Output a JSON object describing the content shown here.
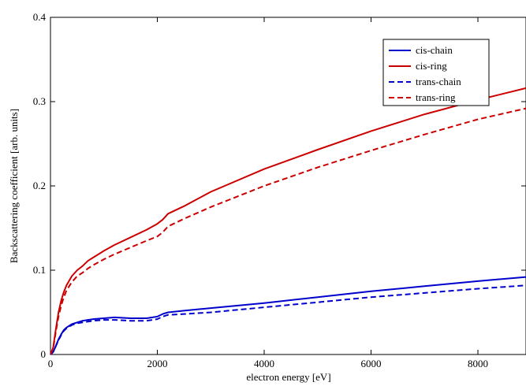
{
  "chart_data": {
    "type": "line",
    "xlabel": "electron energy [eV]",
    "ylabel": "Backscattering coefficient [arb. units]",
    "xlim": [
      0,
      8900
    ],
    "ylim": [
      0,
      0.4
    ],
    "x_ticks": [
      0,
      2000,
      4000,
      6000,
      8000
    ],
    "y_ticks": [
      0,
      0.1,
      0.2,
      0.3,
      0.4
    ],
    "x_tick_labels": [
      "0",
      "2000",
      "4000",
      "6000",
      "8000"
    ],
    "y_tick_labels": [
      "0",
      "0.1",
      "0.2",
      "0.3",
      "0.4"
    ],
    "grid": false,
    "legend_position": "top-right",
    "series": [
      {
        "name": "cis-chain",
        "color": "#0000cc",
        "dash": "solid",
        "x": [
          0,
          50,
          100,
          150,
          200,
          250,
          300,
          400,
          500,
          600,
          700,
          800,
          1000,
          1200,
          1500,
          1800,
          2000,
          2100,
          2200,
          2500,
          3000,
          4000,
          5000,
          6000,
          7000,
          8000,
          8900
        ],
        "y": [
          0,
          0.003,
          0.01,
          0.018,
          0.024,
          0.029,
          0.032,
          0.036,
          0.038,
          0.04,
          0.041,
          0.042,
          0.043,
          0.044,
          0.043,
          0.043,
          0.045,
          0.048,
          0.05,
          0.052,
          0.055,
          0.061,
          0.068,
          0.075,
          0.081,
          0.087,
          0.092
        ]
      },
      {
        "name": "cis-ring",
        "color": "#cc0000",
        "dash": "solid",
        "x": [
          0,
          50,
          100,
          150,
          200,
          250,
          300,
          400,
          500,
          600,
          700,
          800,
          1000,
          1200,
          1500,
          1800,
          2000,
          2100,
          2200,
          2500,
          3000,
          4000,
          5000,
          6000,
          7000,
          8000,
          8900
        ],
        "y": [
          0,
          0.008,
          0.03,
          0.05,
          0.064,
          0.074,
          0.082,
          0.093,
          0.1,
          0.105,
          0.111,
          0.115,
          0.123,
          0.13,
          0.139,
          0.148,
          0.155,
          0.16,
          0.167,
          0.176,
          0.193,
          0.22,
          0.243,
          0.265,
          0.285,
          0.302,
          0.316
        ]
      },
      {
        "name": "trans-chain",
        "color": "#0000cc",
        "dash": "dashed",
        "x": [
          0,
          50,
          100,
          150,
          200,
          250,
          300,
          400,
          500,
          600,
          700,
          800,
          1000,
          1200,
          1500,
          1800,
          2000,
          2100,
          2200,
          2500,
          3000,
          4000,
          5000,
          6000,
          7000,
          8000,
          8900
        ],
        "y": [
          0,
          0.003,
          0.01,
          0.017,
          0.023,
          0.028,
          0.031,
          0.035,
          0.037,
          0.038,
          0.039,
          0.04,
          0.041,
          0.041,
          0.04,
          0.04,
          0.042,
          0.045,
          0.047,
          0.048,
          0.05,
          0.056,
          0.062,
          0.068,
          0.073,
          0.078,
          0.082
        ]
      },
      {
        "name": "trans-ring",
        "color": "#cc0000",
        "dash": "dashed",
        "x": [
          0,
          50,
          100,
          150,
          200,
          250,
          300,
          400,
          500,
          600,
          700,
          800,
          1000,
          1200,
          1500,
          1800,
          2000,
          2100,
          2200,
          2500,
          3000,
          4000,
          5000,
          6000,
          7000,
          8000,
          8900
        ],
        "y": [
          0,
          0.007,
          0.027,
          0.045,
          0.058,
          0.068,
          0.076,
          0.086,
          0.093,
          0.097,
          0.102,
          0.106,
          0.113,
          0.119,
          0.127,
          0.135,
          0.14,
          0.145,
          0.152,
          0.161,
          0.175,
          0.2,
          0.222,
          0.242,
          0.261,
          0.279,
          0.292
        ]
      }
    ]
  }
}
